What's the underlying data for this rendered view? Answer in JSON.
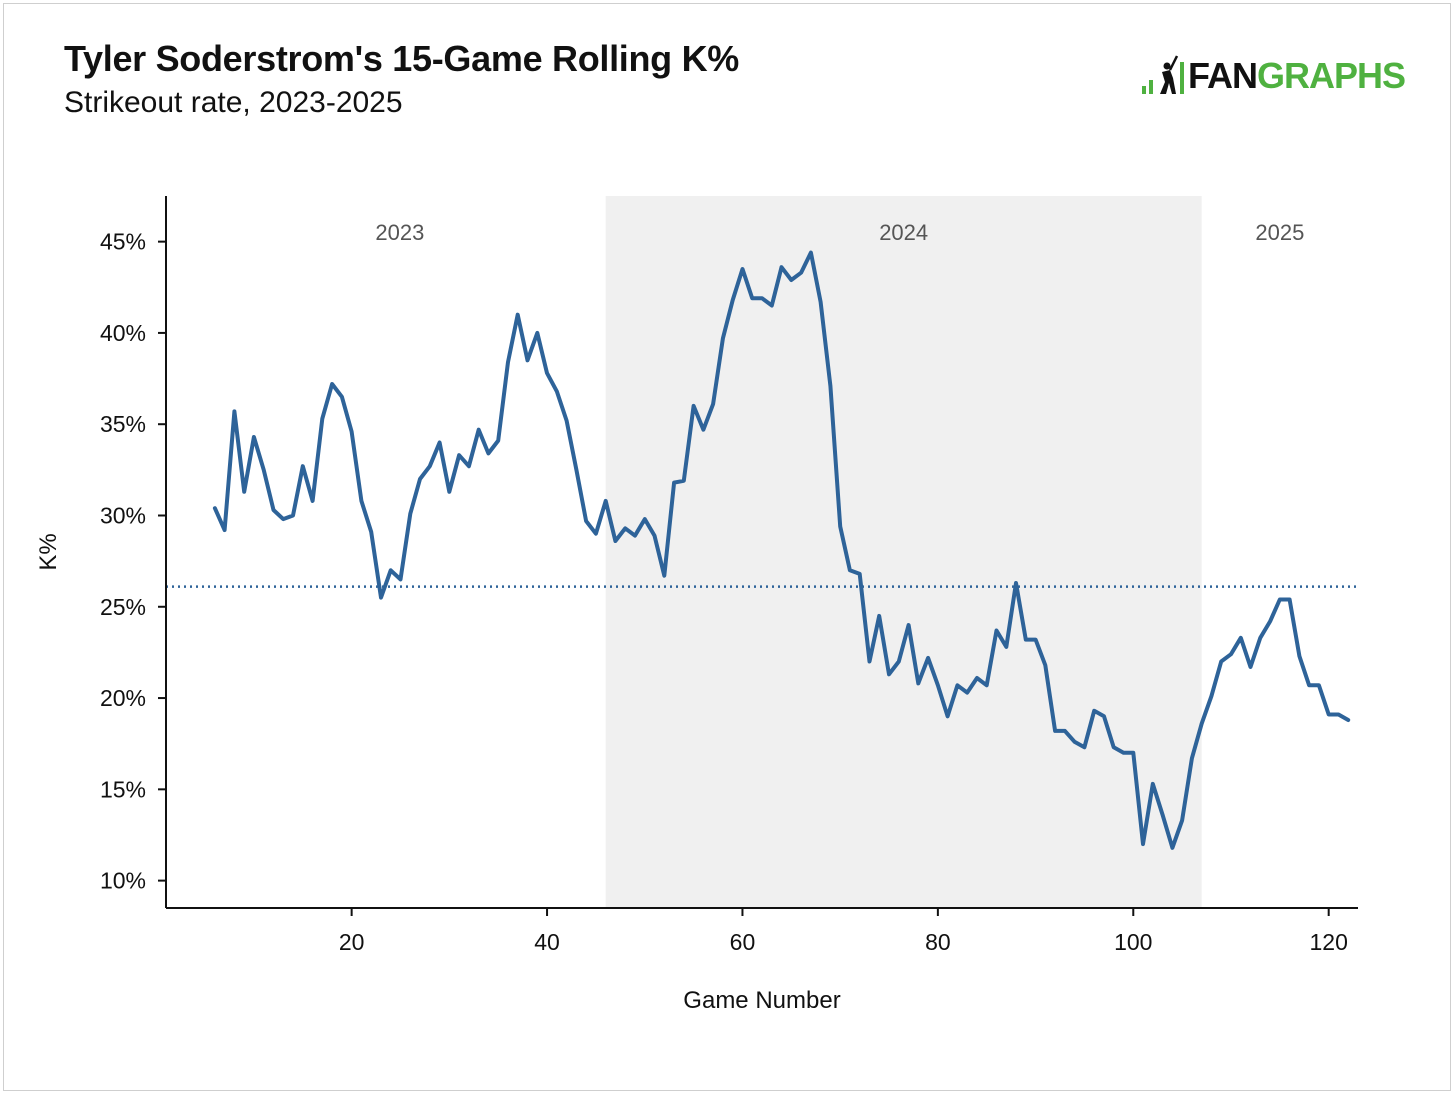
{
  "header": {
    "title": "Tyler Soderstrom's 15-Game Rolling K%",
    "subtitle": "Strikeout rate, 2023-2025"
  },
  "logo": {
    "text_primary": "FAN",
    "text_secondary": "GRAPHS",
    "icon": "fangraphs-batter-icon",
    "colors": {
      "primary": "#111111",
      "secondary": "#4fb140"
    }
  },
  "chart_data": {
    "type": "line",
    "title": "Tyler Soderstrom's 15-Game Rolling K%",
    "subtitle": "Strikeout rate, 2023-2025",
    "xlabel": "Game Number",
    "ylabel": "K%",
    "xlim": [
      1,
      123
    ],
    "ylim": [
      8.5,
      47.5
    ],
    "x_ticks": [
      20,
      40,
      60,
      80,
      100,
      120
    ],
    "y_ticks": [
      10,
      15,
      20,
      25,
      30,
      35,
      40,
      45
    ],
    "y_tick_labels": [
      "10%",
      "15%",
      "20%",
      "25%",
      "30%",
      "35%",
      "40%",
      "45%"
    ],
    "grid": false,
    "line_color": "#2e6399",
    "reference_line": {
      "value": 26.1,
      "style": "dotted",
      "color": "#2e6399"
    },
    "seasons": [
      {
        "label": "2023",
        "start": 1,
        "end": 46,
        "shaded": false
      },
      {
        "label": "2024",
        "start": 46,
        "end": 107,
        "shaded": true
      },
      {
        "label": "2025",
        "start": 107,
        "end": 123,
        "shaded": false
      }
    ],
    "shade_color": "#f0f0f0",
    "series": [
      {
        "x": [
          6,
          7,
          8,
          9,
          10,
          11,
          12,
          13,
          14,
          15,
          16,
          17,
          18,
          19,
          20,
          21,
          22,
          23,
          24,
          25,
          26,
          27,
          28,
          29,
          30,
          31,
          32,
          33,
          34,
          35,
          36,
          37,
          38,
          39,
          40,
          41,
          42,
          43,
          44,
          45,
          46,
          47,
          48,
          49,
          50,
          51,
          52,
          53,
          54,
          55,
          56,
          57,
          58,
          59,
          60,
          61,
          62,
          63,
          64,
          65,
          66,
          67,
          68,
          69,
          70,
          71,
          72,
          73,
          74,
          75,
          76,
          77,
          78,
          79,
          80,
          81,
          82,
          83,
          84,
          85,
          86,
          87,
          88,
          89,
          90,
          91,
          92,
          93,
          94,
          95,
          96,
          97,
          98,
          99,
          100,
          101,
          102,
          103,
          104,
          105,
          106,
          107,
          108,
          109,
          110,
          111,
          112,
          113,
          114,
          115,
          116,
          117,
          118,
          119,
          120,
          121,
          122
        ],
        "values": [
          30.4,
          29.2,
          35.7,
          31.3,
          34.3,
          32.5,
          30.3,
          29.8,
          30.0,
          32.7,
          30.8,
          35.3,
          37.2,
          36.5,
          34.6,
          30.8,
          29.1,
          25.5,
          27.0,
          26.5,
          30.1,
          32.0,
          32.7,
          34.0,
          31.3,
          33.3,
          32.7,
          34.7,
          33.4,
          34.1,
          38.4,
          41.0,
          38.5,
          40.0,
          37.8,
          36.8,
          35.2,
          32.5,
          29.7,
          29.0,
          30.8,
          28.6,
          29.3,
          28.9,
          29.8,
          28.9,
          26.7,
          31.8,
          31.9,
          36.0,
          34.7,
          36.1,
          39.7,
          41.8,
          43.5,
          41.9,
          41.9,
          41.5,
          43.6,
          42.9,
          43.3,
          44.4,
          41.7,
          37.1,
          29.4,
          27.0,
          26.8,
          22.0,
          24.5,
          21.3,
          22.0,
          24.0,
          20.8,
          22.2,
          20.7,
          19.0,
          20.7,
          20.3,
          21.1,
          20.7,
          23.7,
          22.8,
          26.3,
          23.2,
          23.2,
          21.8,
          18.2,
          18.2,
          17.6,
          17.3,
          19.3,
          19.0,
          17.3,
          17.0,
          17.0,
          12.0,
          15.3,
          13.6,
          11.8,
          13.3,
          16.7,
          18.6,
          20.1,
          22.0,
          22.4,
          23.3,
          21.7,
          23.3,
          24.2,
          25.4,
          25.4,
          22.3,
          20.7,
          20.7,
          19.1,
          19.1,
          18.8
        ]
      }
    ]
  }
}
